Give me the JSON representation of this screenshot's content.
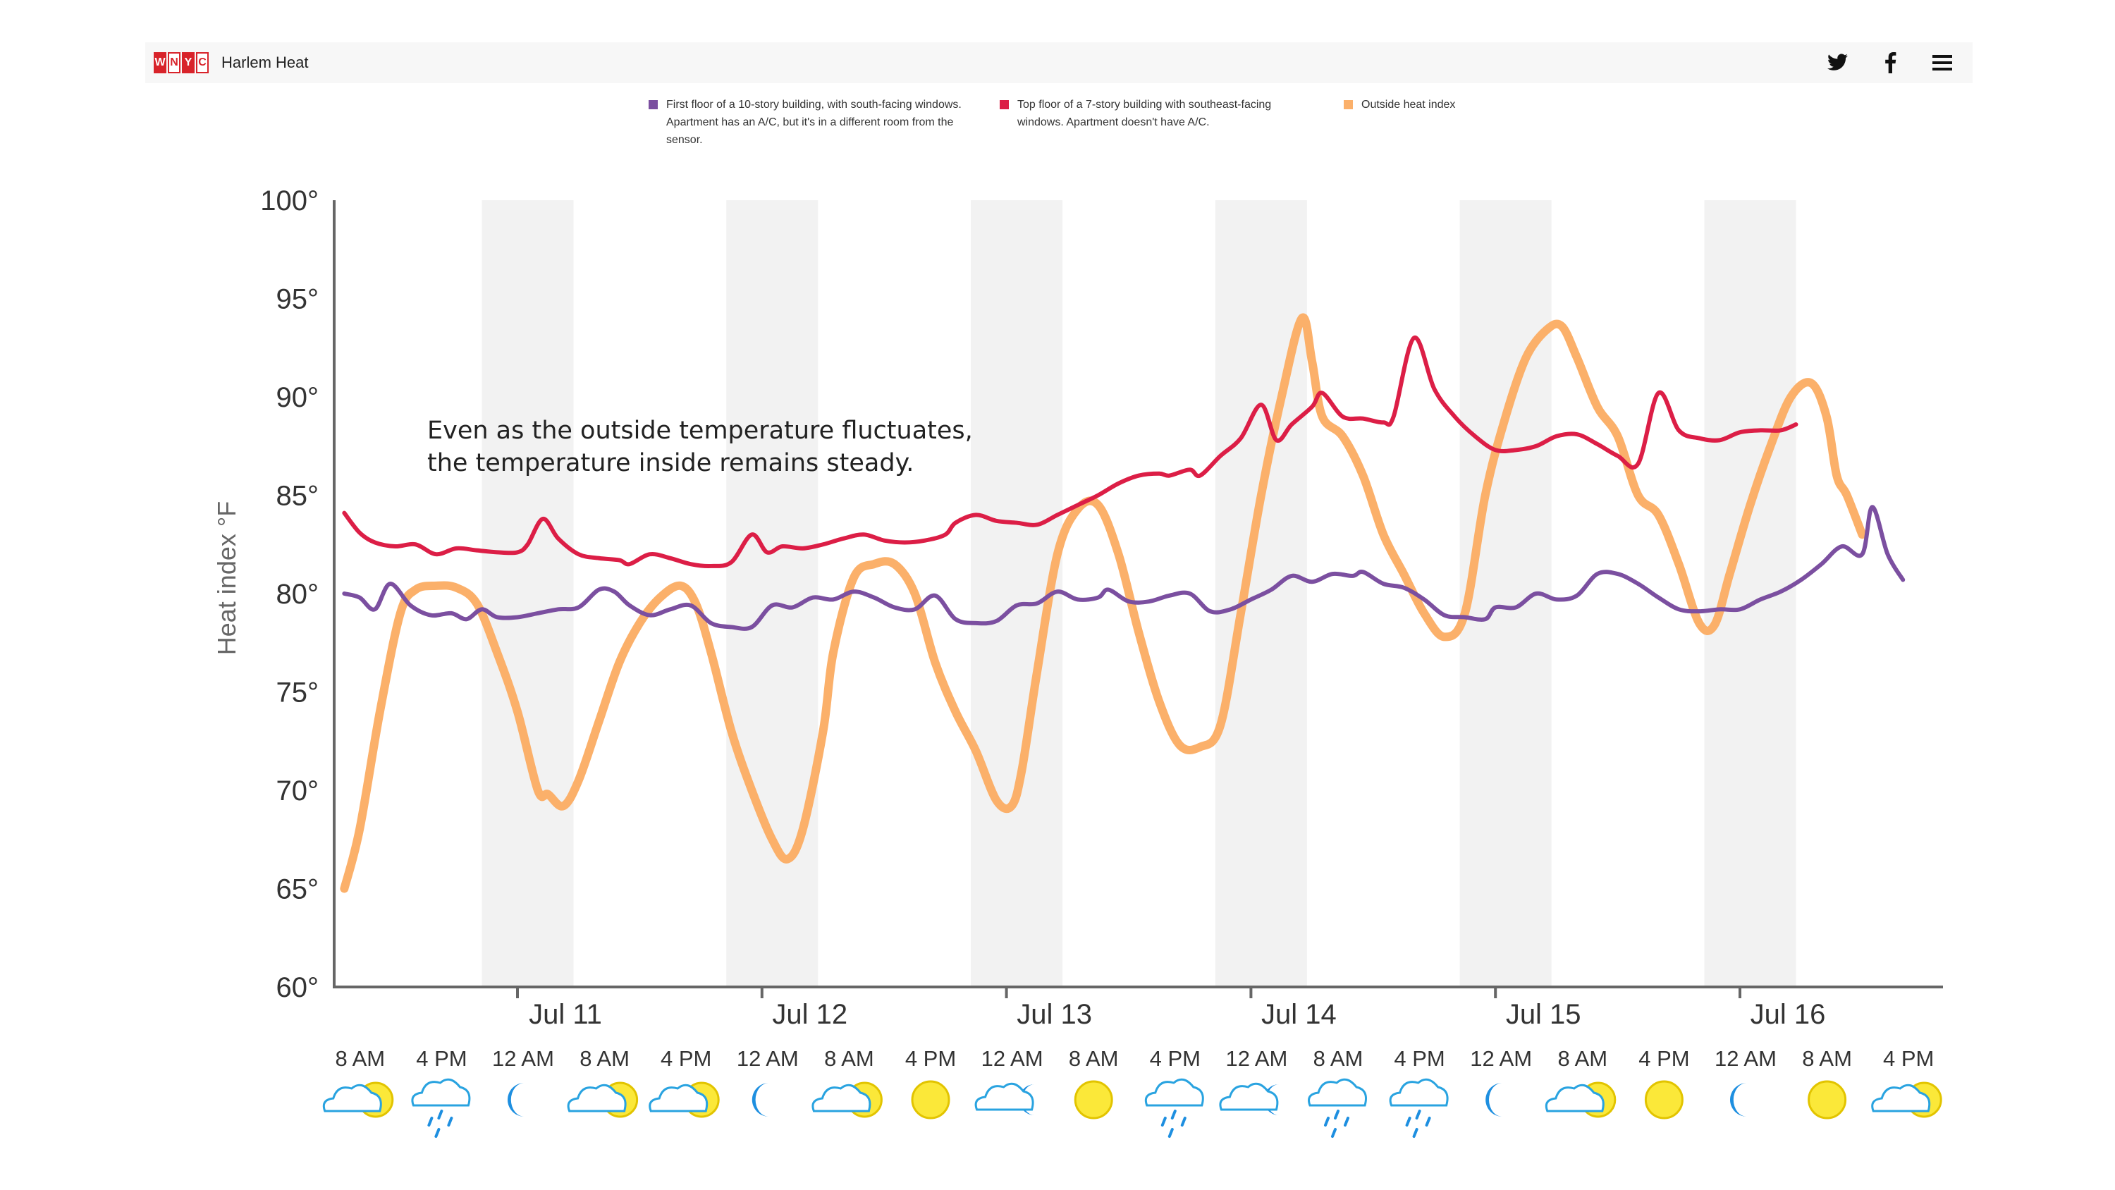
{
  "header": {
    "logo_letters": [
      "W",
      "N",
      "Y",
      "C"
    ],
    "site_title": "Harlem Heat",
    "icons": [
      "twitter-icon",
      "facebook-icon",
      "menu-icon"
    ]
  },
  "legend": [
    {
      "label": "First floor of a 10-story building, with south-facing windows. Apartment has an A/C, but it's in a different room from the sensor.",
      "color": "#7b4fa0"
    },
    {
      "label": "Top floor of a 7-story building with southeast-facing windows. Apartment doesn't have A/C.",
      "color": "#dc1e46"
    },
    {
      "label": "Outside heat index",
      "color": "#fbb06a"
    }
  ],
  "annotation": [
    "Even as the outside temperature fluctuates,",
    "the temperature inside remains steady."
  ],
  "chart_data": {
    "type": "line",
    "ylabel": "Heat index °F",
    "ylim": [
      60,
      100
    ],
    "yticks": [
      {
        "value": 60,
        "label": "60°"
      },
      {
        "value": 65,
        "label": "65°"
      },
      {
        "value": 70,
        "label": "70°"
      },
      {
        "value": 75,
        "label": "75°"
      },
      {
        "value": 80,
        "label": "80°"
      },
      {
        "value": 85,
        "label": "85°"
      },
      {
        "value": 90,
        "label": "90°"
      },
      {
        "value": 95,
        "label": "95°"
      },
      {
        "value": 100,
        "label": "100°"
      }
    ],
    "xlim_hours": [
      -16,
      112
    ],
    "date_ticks": [
      {
        "hour": 0,
        "label": "Jul 11"
      },
      {
        "hour": 24,
        "label": "Jul 12"
      },
      {
        "hour": 48,
        "label": "Jul 13"
      },
      {
        "hour": 72,
        "label": "Jul 14"
      },
      {
        "hour": 96,
        "label": "Jul 15"
      },
      {
        "hour": 120,
        "label": "Jul 16"
      }
    ],
    "night_bands": [
      {
        "from": -3.5,
        "to": 5.5
      },
      {
        "from": 20.5,
        "to": 29.5
      },
      {
        "from": 44.5,
        "to": 53.5
      },
      {
        "from": 68.5,
        "to": 77.5
      },
      {
        "from": 92.5,
        "to": 101.5
      },
      {
        "from": 116.5,
        "to": 125.5
      }
    ],
    "weather": [
      {
        "hour": -16,
        "label": "8 AM",
        "icon": "partly-cloudy-icon"
      },
      {
        "hour": -8,
        "label": "4 PM",
        "icon": "rain-icon"
      },
      {
        "hour": 0,
        "label": "12 AM",
        "icon": "moon-icon"
      },
      {
        "hour": 8,
        "label": "8 AM",
        "icon": "partly-cloudy-icon"
      },
      {
        "hour": 16,
        "label": "4 PM",
        "icon": "partly-cloudy-icon"
      },
      {
        "hour": 24,
        "label": "12 AM",
        "icon": "moon-icon"
      },
      {
        "hour": 32,
        "label": "8 AM",
        "icon": "partly-cloudy-icon"
      },
      {
        "hour": 40,
        "label": "4 PM",
        "icon": "sun-icon"
      },
      {
        "hour": 48,
        "label": "12 AM",
        "icon": "cloudy-night-icon"
      },
      {
        "hour": 56,
        "label": "8 AM",
        "icon": "sun-icon"
      },
      {
        "hour": 64,
        "label": "4 PM",
        "icon": "rain-icon"
      },
      {
        "hour": 72,
        "label": "12 AM",
        "icon": "cloudy-night-icon"
      },
      {
        "hour": 80,
        "label": "8 AM",
        "icon": "rain-icon"
      },
      {
        "hour": 88,
        "label": "4 PM",
        "icon": "rain-icon"
      },
      {
        "hour": 96,
        "label": "12 AM",
        "icon": "moon-icon"
      },
      {
        "hour": 104,
        "label": "8 AM",
        "icon": "partly-cloudy-icon"
      },
      {
        "hour": 112,
        "label": "4 PM",
        "icon": "sun-icon"
      },
      {
        "hour": 120,
        "label": "12 AM",
        "icon": "moon-icon"
      },
      {
        "hour": 128,
        "label": "8 AM",
        "icon": "sun-icon"
      },
      {
        "hour": 136,
        "label": "4 PM",
        "icon": "partly-cloudy-icon"
      }
    ],
    "series": [
      {
        "color": "#7b4fa0",
        "points": [
          [
            -17,
            80
          ],
          [
            -15.5,
            79.8
          ],
          [
            -14,
            79.2
          ],
          [
            -12.5,
            80.5
          ],
          [
            -10.5,
            79.4
          ],
          [
            -8.5,
            78.9
          ],
          [
            -6.5,
            79
          ],
          [
            -5,
            78.7
          ],
          [
            -3.5,
            79.2
          ],
          [
            -2,
            78.8
          ],
          [
            0,
            78.8
          ],
          [
            2,
            79
          ],
          [
            4,
            79.2
          ],
          [
            6,
            79.3
          ],
          [
            8,
            80.2
          ],
          [
            9.5,
            80.1
          ],
          [
            11,
            79.4
          ],
          [
            13,
            78.9
          ],
          [
            15,
            79.2
          ],
          [
            17,
            79.4
          ],
          [
            19,
            78.5
          ],
          [
            21,
            78.3
          ],
          [
            23,
            78.3
          ],
          [
            25,
            79.4
          ],
          [
            27,
            79.3
          ],
          [
            29,
            79.8
          ],
          [
            31,
            79.7
          ],
          [
            33,
            80.1
          ],
          [
            35,
            79.8
          ],
          [
            37,
            79.3
          ],
          [
            39,
            79.2
          ],
          [
            41,
            79.9
          ],
          [
            43,
            78.7
          ],
          [
            45,
            78.5
          ],
          [
            47,
            78.6
          ],
          [
            49,
            79.4
          ],
          [
            51,
            79.5
          ],
          [
            53,
            80.1
          ],
          [
            55,
            79.7
          ],
          [
            57,
            79.8
          ],
          [
            58,
            80.2
          ],
          [
            60,
            79.6
          ],
          [
            62,
            79.6
          ],
          [
            64,
            79.9
          ],
          [
            66,
            80
          ],
          [
            68,
            79.1
          ],
          [
            70,
            79.2
          ],
          [
            72,
            79.7
          ],
          [
            74,
            80.2
          ],
          [
            76,
            80.9
          ],
          [
            78,
            80.6
          ],
          [
            80,
            81
          ],
          [
            82,
            80.9
          ],
          [
            83,
            81.1
          ],
          [
            85,
            80.5
          ],
          [
            87,
            80.3
          ],
          [
            89,
            79.7
          ],
          [
            91,
            78.9
          ],
          [
            93,
            78.8
          ],
          [
            95,
            78.7
          ],
          [
            96,
            79.3
          ],
          [
            98,
            79.3
          ],
          [
            100,
            80
          ],
          [
            102,
            79.7
          ],
          [
            104,
            79.9
          ],
          [
            106,
            81
          ],
          [
            108,
            81
          ],
          [
            110,
            80.5
          ],
          [
            112,
            79.8
          ],
          [
            114,
            79.2
          ],
          [
            116,
            79.1
          ],
          [
            118,
            79.2
          ],
          [
            120,
            79.2
          ],
          [
            122,
            79.7
          ],
          [
            124,
            80.1
          ],
          [
            126,
            80.7
          ],
          [
            128,
            81.5
          ],
          [
            130,
            82.4
          ],
          [
            132,
            82
          ],
          [
            133,
            84.4
          ],
          [
            134.5,
            82
          ],
          [
            136,
            80.7
          ]
        ]
      },
      {
        "color": "#dc1e46",
        "points": [
          [
            -17,
            84.1
          ],
          [
            -15.5,
            83.1
          ],
          [
            -14,
            82.6
          ],
          [
            -12,
            82.4
          ],
          [
            -10,
            82.5
          ],
          [
            -8,
            82
          ],
          [
            -6,
            82.3
          ],
          [
            -4,
            82.2
          ],
          [
            -2,
            82.1
          ],
          [
            0,
            82.1
          ],
          [
            1,
            82.5
          ],
          [
            2.5,
            83.8
          ],
          [
            4,
            82.8
          ],
          [
            6,
            82
          ],
          [
            8,
            81.8
          ],
          [
            10,
            81.7
          ],
          [
            11,
            81.5
          ],
          [
            13,
            82
          ],
          [
            15,
            81.8
          ],
          [
            17,
            81.5
          ],
          [
            19,
            81.4
          ],
          [
            21,
            81.6
          ],
          [
            23,
            83
          ],
          [
            24.5,
            82.1
          ],
          [
            26,
            82.4
          ],
          [
            28,
            82.3
          ],
          [
            30,
            82.5
          ],
          [
            32,
            82.8
          ],
          [
            34,
            83
          ],
          [
            36,
            82.7
          ],
          [
            38,
            82.6
          ],
          [
            40,
            82.7
          ],
          [
            42,
            83
          ],
          [
            43,
            83.6
          ],
          [
            45,
            84
          ],
          [
            47,
            83.7
          ],
          [
            49,
            83.6
          ],
          [
            51,
            83.5
          ],
          [
            53,
            84
          ],
          [
            55,
            84.5
          ],
          [
            57,
            85
          ],
          [
            59,
            85.6
          ],
          [
            61,
            86
          ],
          [
            63,
            86.1
          ],
          [
            64,
            86
          ],
          [
            66,
            86.3
          ],
          [
            67,
            86
          ],
          [
            69,
            87
          ],
          [
            71,
            87.9
          ],
          [
            73,
            89.6
          ],
          [
            74.5,
            87.8
          ],
          [
            76,
            88.6
          ],
          [
            78,
            89.5
          ],
          [
            79,
            90.2
          ],
          [
            81,
            89
          ],
          [
            83,
            88.9
          ],
          [
            85,
            88.7
          ],
          [
            86,
            89
          ],
          [
            88,
            93
          ],
          [
            90,
            90.4
          ],
          [
            92,
            89
          ],
          [
            94,
            88
          ],
          [
            96,
            87.3
          ],
          [
            98,
            87.3
          ],
          [
            100,
            87.5
          ],
          [
            102,
            88
          ],
          [
            104,
            88.1
          ],
          [
            106,
            87.6
          ],
          [
            108,
            87
          ],
          [
            110,
            86.6
          ],
          [
            112,
            90.2
          ],
          [
            114,
            88.3
          ],
          [
            116,
            87.9
          ],
          [
            118,
            87.8
          ],
          [
            120,
            88.2
          ],
          [
            122,
            88.3
          ],
          [
            124,
            88.3
          ],
          [
            125.5,
            88.6
          ]
        ]
      },
      {
        "color": "#fbb06a",
        "points": [
          [
            -17,
            65
          ],
          [
            -15.5,
            68
          ],
          [
            -13.5,
            74
          ],
          [
            -11.5,
            79
          ],
          [
            -10,
            80.2
          ],
          [
            -8,
            80.4
          ],
          [
            -6,
            80.3
          ],
          [
            -4,
            79.5
          ],
          [
            -2,
            77
          ],
          [
            0,
            74
          ],
          [
            2,
            70
          ],
          [
            3,
            69.8
          ],
          [
            4.5,
            69.2
          ],
          [
            6,
            70.5
          ],
          [
            8,
            73.5
          ],
          [
            10,
            76.5
          ],
          [
            12,
            78.5
          ],
          [
            14,
            79.8
          ],
          [
            16,
            80.4
          ],
          [
            17.5,
            79.5
          ],
          [
            19,
            77
          ],
          [
            21,
            73
          ],
          [
            23,
            70
          ],
          [
            25,
            67.5
          ],
          [
            26.5,
            66.5
          ],
          [
            28,
            68
          ],
          [
            30,
            73
          ],
          [
            31,
            77
          ],
          [
            33,
            80.8
          ],
          [
            35,
            81.5
          ],
          [
            37,
            81.5
          ],
          [
            39,
            80
          ],
          [
            41,
            76.5
          ],
          [
            43,
            74
          ],
          [
            45,
            72
          ],
          [
            47,
            69.5
          ],
          [
            48.5,
            69.2
          ],
          [
            49.5,
            71
          ],
          [
            51,
            76
          ],
          [
            53,
            82
          ],
          [
            55,
            84.3
          ],
          [
            57,
            84.5
          ],
          [
            59,
            82
          ],
          [
            61,
            78
          ],
          [
            63,
            74.5
          ],
          [
            65,
            72.3
          ],
          [
            67,
            72.2
          ],
          [
            69,
            73.3
          ],
          [
            71,
            79
          ],
          [
            73,
            85
          ],
          [
            75,
            90
          ],
          [
            77,
            94
          ],
          [
            78,
            91.8
          ],
          [
            79,
            89
          ],
          [
            81,
            88
          ],
          [
            83,
            86
          ],
          [
            85,
            83
          ],
          [
            87,
            81
          ],
          [
            89,
            79
          ],
          [
            91,
            77.8
          ],
          [
            93,
            79
          ],
          [
            95,
            85
          ],
          [
            97,
            89
          ],
          [
            99,
            92
          ],
          [
            101,
            93.4
          ],
          [
            102.5,
            93.6
          ],
          [
            104,
            92
          ],
          [
            106,
            89.5
          ],
          [
            108,
            88
          ],
          [
            110,
            85
          ],
          [
            112,
            84
          ],
          [
            114,
            81.5
          ],
          [
            116,
            78.5
          ],
          [
            117.5,
            78.4
          ],
          [
            119,
            81
          ],
          [
            121,
            84.5
          ],
          [
            123,
            87.5
          ],
          [
            125,
            90
          ],
          [
            127,
            90.7
          ],
          [
            128.5,
            89
          ],
          [
            129.5,
            86
          ],
          [
            130.5,
            85
          ],
          [
            132,
            83
          ]
        ]
      }
    ]
  }
}
